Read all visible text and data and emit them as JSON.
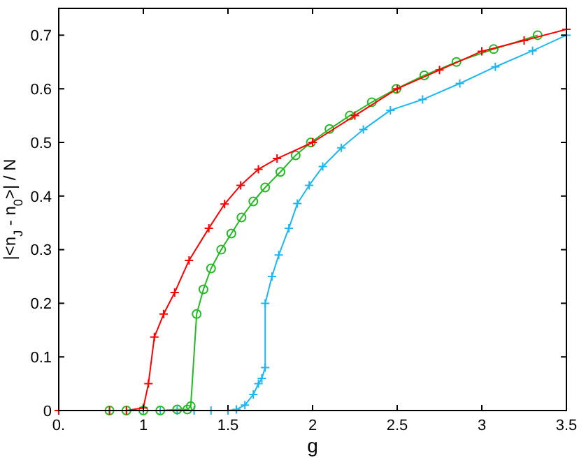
{
  "chart_data": {
    "type": "line",
    "xlabel": "g",
    "ylabel": "|<n$_{J}$ - n$_{0}$>| / N",
    "xlim": [
      0.5,
      3.5
    ],
    "ylim": [
      0,
      0.75
    ],
    "xticks": [
      {
        "value": 0.5,
        "label": "0."
      },
      1,
      1.5,
      2,
      2.5,
      3,
      3.5
    ],
    "yticks": [
      0,
      0.1,
      0.2,
      0.3,
      0.4,
      0.5,
      0.6,
      0.7
    ],
    "grid": false,
    "series": [
      {
        "color": "#1ab8f0",
        "marker": "cross",
        "x": [
          0.8,
          0.9,
          1.0,
          1.1,
          1.2,
          1.3,
          1.4,
          1.5,
          1.55,
          1.6,
          1.65,
          1.68,
          1.7,
          1.72,
          1.72,
          1.76,
          1.8,
          1.86,
          1.91,
          1.98,
          2.06,
          2.17,
          2.3,
          2.46,
          2.65,
          2.87,
          3.08,
          3.3,
          3.5
        ],
        "values": [
          0,
          0,
          0,
          0,
          0,
          0,
          0,
          0,
          0.002,
          0.01,
          0.03,
          0.05,
          0.06,
          0.08,
          0.2,
          0.25,
          0.29,
          0.34,
          0.386,
          0.42,
          0.455,
          0.49,
          0.524,
          0.56,
          0.58,
          0.61,
          0.641,
          0.671,
          0.7
        ]
      },
      {
        "color": "#22bb22",
        "marker": "circle",
        "x": [
          0.8,
          0.9,
          1.0,
          1.1,
          1.2,
          1.26,
          1.28,
          1.315,
          1.355,
          1.4,
          1.46,
          1.52,
          1.58,
          1.65,
          1.72,
          1.81,
          1.9,
          1.99,
          2.1,
          2.22,
          2.35,
          2.495,
          2.66,
          2.85,
          3.07,
          3.33
        ],
        "values": [
          0,
          0,
          0,
          0,
          0.002,
          0.002,
          0.008,
          0.18,
          0.226,
          0.265,
          0.3,
          0.33,
          0.36,
          0.39,
          0.416,
          0.445,
          0.476,
          0.5,
          0.525,
          0.55,
          0.575,
          0.6,
          0.625,
          0.65,
          0.674,
          0.7
        ]
      },
      {
        "color": "#ff0000",
        "marker": "cross",
        "x": [
          0.5,
          0.8,
          0.9,
          1.0,
          1.03,
          1.065,
          1.12,
          1.185,
          1.27,
          1.387,
          1.48,
          1.575,
          1.68,
          1.79,
          2.0,
          2.25,
          2.5,
          2.75,
          3.0,
          3.25,
          3.5
        ],
        "values": [
          0,
          0,
          0,
          0.005,
          0.05,
          0.137,
          0.18,
          0.22,
          0.28,
          0.34,
          0.385,
          0.42,
          0.45,
          0.47,
          0.5,
          0.55,
          0.6,
          0.635,
          0.67,
          0.69,
          0.711
        ]
      }
    ]
  }
}
